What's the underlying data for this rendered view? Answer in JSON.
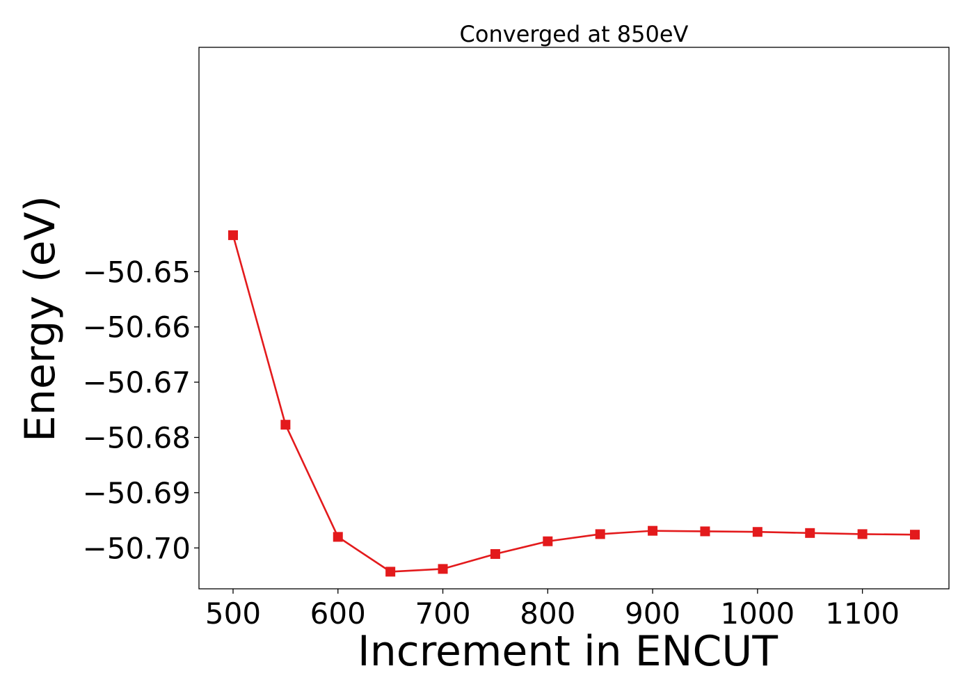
{
  "chart_data": {
    "type": "line",
    "title": "Converged at 850eV",
    "xlabel": "Increment in ENCUT",
    "ylabel": "Energy (eV)",
    "xlim": [
      467.5,
      1182.5
    ],
    "ylim": [
      -50.7074,
      -50.6094
    ],
    "xticks": [
      500,
      600,
      700,
      800,
      900,
      1000,
      1100
    ],
    "yticks": [
      -50.65,
      -50.66,
      -50.67,
      -50.68,
      -50.69,
      -50.7
    ],
    "ytick_labels": [
      "−50.65",
      "−50.66",
      "−50.67",
      "−50.68",
      "−50.69",
      "−50.70"
    ],
    "grid": false,
    "series": [
      {
        "color": "#e31a1c",
        "marker": "square",
        "x": [
          500,
          550,
          600,
          650,
          700,
          750,
          800,
          850,
          900,
          950,
          1000,
          1050,
          1100,
          1150
        ],
        "y": [
          -50.6434,
          -50.6777,
          -50.698,
          -50.7043,
          -50.7038,
          -50.7011,
          -50.6988,
          -50.6975,
          -50.6969,
          -50.697,
          -50.6971,
          -50.6973,
          -50.6975,
          -50.6976
        ]
      }
    ]
  }
}
